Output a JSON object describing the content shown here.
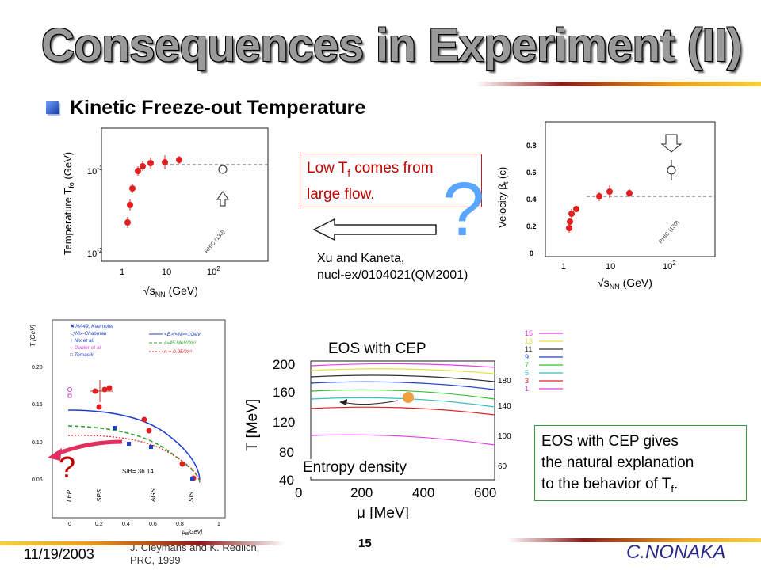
{
  "slide": {
    "title": "Consequences in Experiment  (II)",
    "subtitle": "Kinetic Freeze-out Temperature",
    "footer_date": "11/19/2003",
    "footer_page": "15",
    "footer_author": "C.NONAKA"
  },
  "callouts": {
    "low_tf_line1": "Low T",
    "low_tf_sub1": "f",
    "low_tf_line1b": " comes from",
    "low_tf_line2": "large flow.",
    "eos_line1": "EOS with CEP gives",
    "eos_line2": "the natural explanation",
    "eos_line3": "to the behavior of T",
    "eos_sub": "f",
    "eos_end": ".",
    "question": "?"
  },
  "references": {
    "xu_line1": "Xu and Kaneta,",
    "xu_line2": "nucl-ex/0104021(QM2001)",
    "cleymans_line1": "J. Cleymans and K. Redlich,",
    "cleymans_line2": "PRC, 1999"
  },
  "plot_temperature": {
    "ylabel": "Temperature T",
    "ylabel_sub": "fo",
    "ylabel_unit": " (GeV)",
    "xlabel": "√s",
    "xlabel_sub": "NN",
    "xlabel_unit": " (GeV)",
    "ytick_top": "10",
    "ytick_top_exp": "-1",
    "ytick_bottom": "10",
    "ytick_bottom_exp": "-2",
    "xtick_1": "1",
    "xtick_10": "10",
    "xtick_100": "10",
    "xtick_100_exp": "2",
    "rhic_tag": "RHIC (130)"
  },
  "plot_velocity": {
    "ylabel": "Velocity β",
    "ylabel_sub": "t",
    "ylabel_unit": " (c)",
    "xlabel": "√s",
    "xlabel_sub": "NN",
    "xlabel_unit": " (GeV)",
    "yticks": [
      "0",
      "0.2",
      "0.4",
      "0.6",
      "0.8"
    ],
    "xtick_1": "1",
    "xtick_10": "10",
    "xtick_100": "10",
    "xtick_100_exp": "2",
    "rhic_tag": "RHIC (130)"
  },
  "plot_cleymans": {
    "ylabel": "T",
    "ylabel_unit": "[GeV]",
    "xlabel": "μ",
    "xlabel_sub": "B",
    "xlabel_unit": "[GeV]",
    "yticks": [
      "0.20",
      "0.15",
      "0.10",
      "0.05"
    ],
    "xticks": [
      "0",
      "0.2",
      "0.4",
      "0.6",
      "0.8",
      "1"
    ],
    "legend": [
      "NA49, Kaempfer",
      "Nix-Chapman",
      "Nix et al.",
      "Dobler et al.",
      "Tomasik",
      "<E>/<N>≈1GeV",
      "ε≈45 MeV/fm³",
      "n = 0.05/fm³"
    ],
    "entropy_tag": "S/B= 36  14",
    "region_lep": "LEP",
    "region_sps": "SPS",
    "region_ags": "AGS",
    "region_sis": "SIS"
  },
  "plot_eos": {
    "title": "EOS with CEP",
    "ylabel": "T [MeV]",
    "xlabel": "μ [MeV]",
    "yticks": [
      "200",
      "160",
      "120",
      "80",
      "40"
    ],
    "xticks": [
      "0",
      "200",
      "400",
      "600"
    ],
    "right_labels": [
      "180",
      "140",
      "100",
      "60"
    ],
    "entropy_label": "Entropy density",
    "legend_values": [
      "15",
      "13",
      "11",
      "9",
      "7",
      "5",
      "3",
      "1"
    ],
    "legend_colors": [
      "#e040e0",
      "#e8e040",
      "#303030",
      "#2040d0",
      "#30c030",
      "#30c0c0",
      "#e02020",
      "#e040e0"
    ]
  },
  "colors": {
    "accent_red": "#c00000",
    "question_blue": "#5aa6ff",
    "data_red": "#e02020",
    "callout_green": "#3a9a3a"
  }
}
